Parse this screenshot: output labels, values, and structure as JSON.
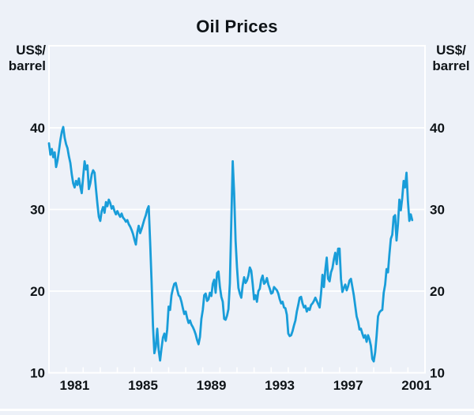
{
  "chart_data": {
    "type": "line",
    "title": "Oil Prices",
    "unit_label_lines": "US$/\nbarrel",
    "y_axis": {
      "min": 10,
      "max": 40,
      "ticks": [
        10,
        20,
        30,
        40
      ],
      "gridlines": [
        20,
        30,
        40
      ],
      "sides": "both",
      "unit": "US$/barrel"
    },
    "x_axis": {
      "start_year": 1980,
      "end_year": 2002,
      "tick_interval_years": 1,
      "labels": [
        "1981",
        "1985",
        "1989",
        "1993",
        "1997",
        "2001"
      ],
      "label_anchor": "mid-year"
    },
    "series": [
      {
        "name": "Oil price",
        "unit": "US$/barrel",
        "frequency": "monthly",
        "start": "1980-01",
        "end": "2001-04",
        "values": [
          38.1,
          36.7,
          37.4,
          36.4,
          37.0,
          35.2,
          36.0,
          37.2,
          38.5,
          39.5,
          40.1,
          38.8,
          38.0,
          37.5,
          36.5,
          35.7,
          34.3,
          33.2,
          32.7,
          33.5,
          33.0,
          33.8,
          32.8,
          32.0,
          34.0,
          35.9,
          34.9,
          35.4,
          32.5,
          33.2,
          34.3,
          34.8,
          34.5,
          32.5,
          30.7,
          29.1,
          28.6,
          29.8,
          30.3,
          29.6,
          30.9,
          30.4,
          31.2,
          30.8,
          30.1,
          30.4,
          29.8,
          29.4,
          29.8,
          29.4,
          29.1,
          29.5,
          29.0,
          28.8,
          28.5,
          28.7,
          28.2,
          27.9,
          27.5,
          27.0,
          26.3,
          25.7,
          27.2,
          28.0,
          27.1,
          27.6,
          28.2,
          28.8,
          29.3,
          30.0,
          30.4,
          26.1,
          21.3,
          15.8,
          12.4,
          13.2,
          15.4,
          12.8,
          11.5,
          13.0,
          14.3,
          14.8,
          13.9,
          15.3,
          18.1,
          17.7,
          19.5,
          20.3,
          20.9,
          21.0,
          20.2,
          19.5,
          19.3,
          18.7,
          17.9,
          17.2,
          17.5,
          16.7,
          16.1,
          16.4,
          15.9,
          15.6,
          15.2,
          14.7,
          14.0,
          13.5,
          14.4,
          16.6,
          17.7,
          19.5,
          19.7,
          18.8,
          19.0,
          19.8,
          19.4,
          20.9,
          21.4,
          19.8,
          22.2,
          22.4,
          20.5,
          19.3,
          18.7,
          16.6,
          16.5,
          17.0,
          17.8,
          21.0,
          28.5,
          35.9,
          32.0,
          26.2,
          22.9,
          20.4,
          19.7,
          19.2,
          20.7,
          21.7,
          21.0,
          21.3,
          21.9,
          22.9,
          22.5,
          20.9,
          19.0,
          19.5,
          18.7,
          20.0,
          20.3,
          21.4,
          21.9,
          20.9,
          21.1,
          21.6,
          20.8,
          20.3,
          19.7,
          19.8,
          20.5,
          20.3,
          20.1,
          19.7,
          19.0,
          18.5,
          18.7,
          18.0,
          17.9,
          17.1,
          14.8,
          14.5,
          14.6,
          15.1,
          15.8,
          16.4,
          17.5,
          18.3,
          19.2,
          19.3,
          18.5,
          18.0,
          18.2,
          17.5,
          17.9,
          17.7,
          18.3,
          18.5,
          18.8,
          19.2,
          18.8,
          18.4,
          18.0,
          19.7,
          22.0,
          20.5,
          22.6,
          24.1,
          21.5,
          21.2,
          22.3,
          22.8,
          23.9,
          24.7,
          23.3,
          25.2,
          25.2,
          21.5,
          19.9,
          20.4,
          20.8,
          20.1,
          20.6,
          21.3,
          21.5,
          20.5,
          19.5,
          18.2,
          16.9,
          16.3,
          15.3,
          15.4,
          14.8,
          14.3,
          14.6,
          13.8,
          14.6,
          14.1,
          13.3,
          11.7,
          11.4,
          12.5,
          14.5,
          16.9,
          17.4,
          17.6,
          17.7,
          19.8,
          20.8,
          22.7,
          22.3,
          24.5,
          26.4,
          26.9,
          29.1,
          29.3,
          26.2,
          28.2,
          31.2,
          29.9,
          31.4,
          33.5,
          32.7,
          34.5,
          31.0,
          28.6,
          29.4,
          28.7
        ]
      }
    ],
    "style": {
      "line_color": "#199dd9",
      "background": "#edf1f8",
      "grid_color": "#ffffff",
      "text_color": "#0f1418"
    }
  }
}
